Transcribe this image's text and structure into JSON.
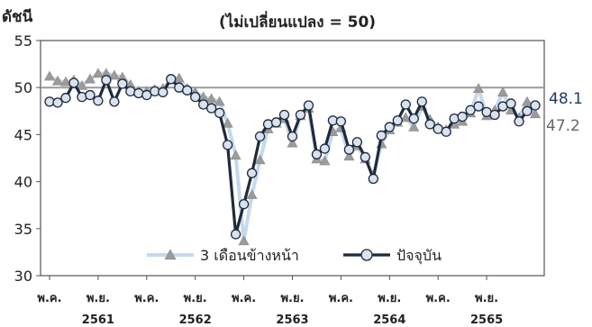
{
  "chart_data": {
    "type": "line",
    "title": "(ไม่เปลี่ยนแปลง = 50)",
    "ylabel": "ดัชนี",
    "xlabel": "",
    "ylim": [
      30,
      55
    ],
    "y_ticks": [
      30,
      35,
      40,
      45,
      50,
      55
    ],
    "grid": false,
    "legend_position": "bottom-center",
    "reference_line": 50,
    "x_ticks": [
      {
        "index": 0,
        "label": "พ.ค."
      },
      {
        "index": 6,
        "label": "พ.ย.",
        "year": "2561"
      },
      {
        "index": 12,
        "label": "พ.ค."
      },
      {
        "index": 18,
        "label": "พ.ย.",
        "year": "2562"
      },
      {
        "index": 24,
        "label": "พ.ค."
      },
      {
        "index": 30,
        "label": "พ.ย.",
        "year": "2563"
      },
      {
        "index": 36,
        "label": "พ.ค."
      },
      {
        "index": 42,
        "label": "พ.ย.",
        "year": "2564"
      },
      {
        "index": 48,
        "label": "พ.ค."
      },
      {
        "index": 54,
        "label": "พ.ย.",
        "year": "2565"
      }
    ],
    "x_count": 61,
    "series": [
      {
        "name": "3 เดือนข้างหน้า",
        "color": "#c5d9ee",
        "marker": "triangle",
        "marker_color": "#9b9b9b",
        "end_label": "47.2",
        "values": [
          51.2,
          50.7,
          50.6,
          50.8,
          50.2,
          50.9,
          51.5,
          51.5,
          51.3,
          51.1,
          50.3,
          49.6,
          49.6,
          49.8,
          49.9,
          50.8,
          51.0,
          49.9,
          49.5,
          49.0,
          48.8,
          48.5,
          46.2,
          42.8,
          33.7,
          38.6,
          42.3,
          45.6,
          46.2,
          46.7,
          44.1,
          47.0,
          47.8,
          42.4,
          42.2,
          45.3,
          45.7,
          42.7,
          43.8,
          42.4,
          40.7,
          44.0,
          45.5,
          46.3,
          46.8,
          45.8,
          48.0,
          46.6,
          45.8,
          45.5,
          46.1,
          46.4,
          47.3,
          49.9,
          47.0,
          47.6,
          49.5,
          47.6,
          46.8,
          48.5,
          47.2
        ]
      },
      {
        "name": "ปัจจุบัน",
        "color": "#1f2a3c",
        "marker": "circle",
        "marker_color": "#d9e2ef",
        "end_label": "48.1",
        "values": [
          48.5,
          48.4,
          48.9,
          50.5,
          49.0,
          49.2,
          48.6,
          50.8,
          48.5,
          50.4,
          49.6,
          49.4,
          49.2,
          49.6,
          49.5,
          50.9,
          50.0,
          49.7,
          49.0,
          48.2,
          47.8,
          47.3,
          43.9,
          34.4,
          37.6,
          40.9,
          44.8,
          46.1,
          46.3,
          47.1,
          44.8,
          47.1,
          48.1,
          42.9,
          43.5,
          46.5,
          46.4,
          43.4,
          44.2,
          42.6,
          40.3,
          44.9,
          45.8,
          46.5,
          48.2,
          46.7,
          48.5,
          46.1,
          45.6,
          45.3,
          46.7,
          46.9,
          47.6,
          48.0,
          47.4,
          47.1,
          48.0,
          48.3,
          46.4,
          47.5,
          48.1
        ]
      }
    ]
  }
}
